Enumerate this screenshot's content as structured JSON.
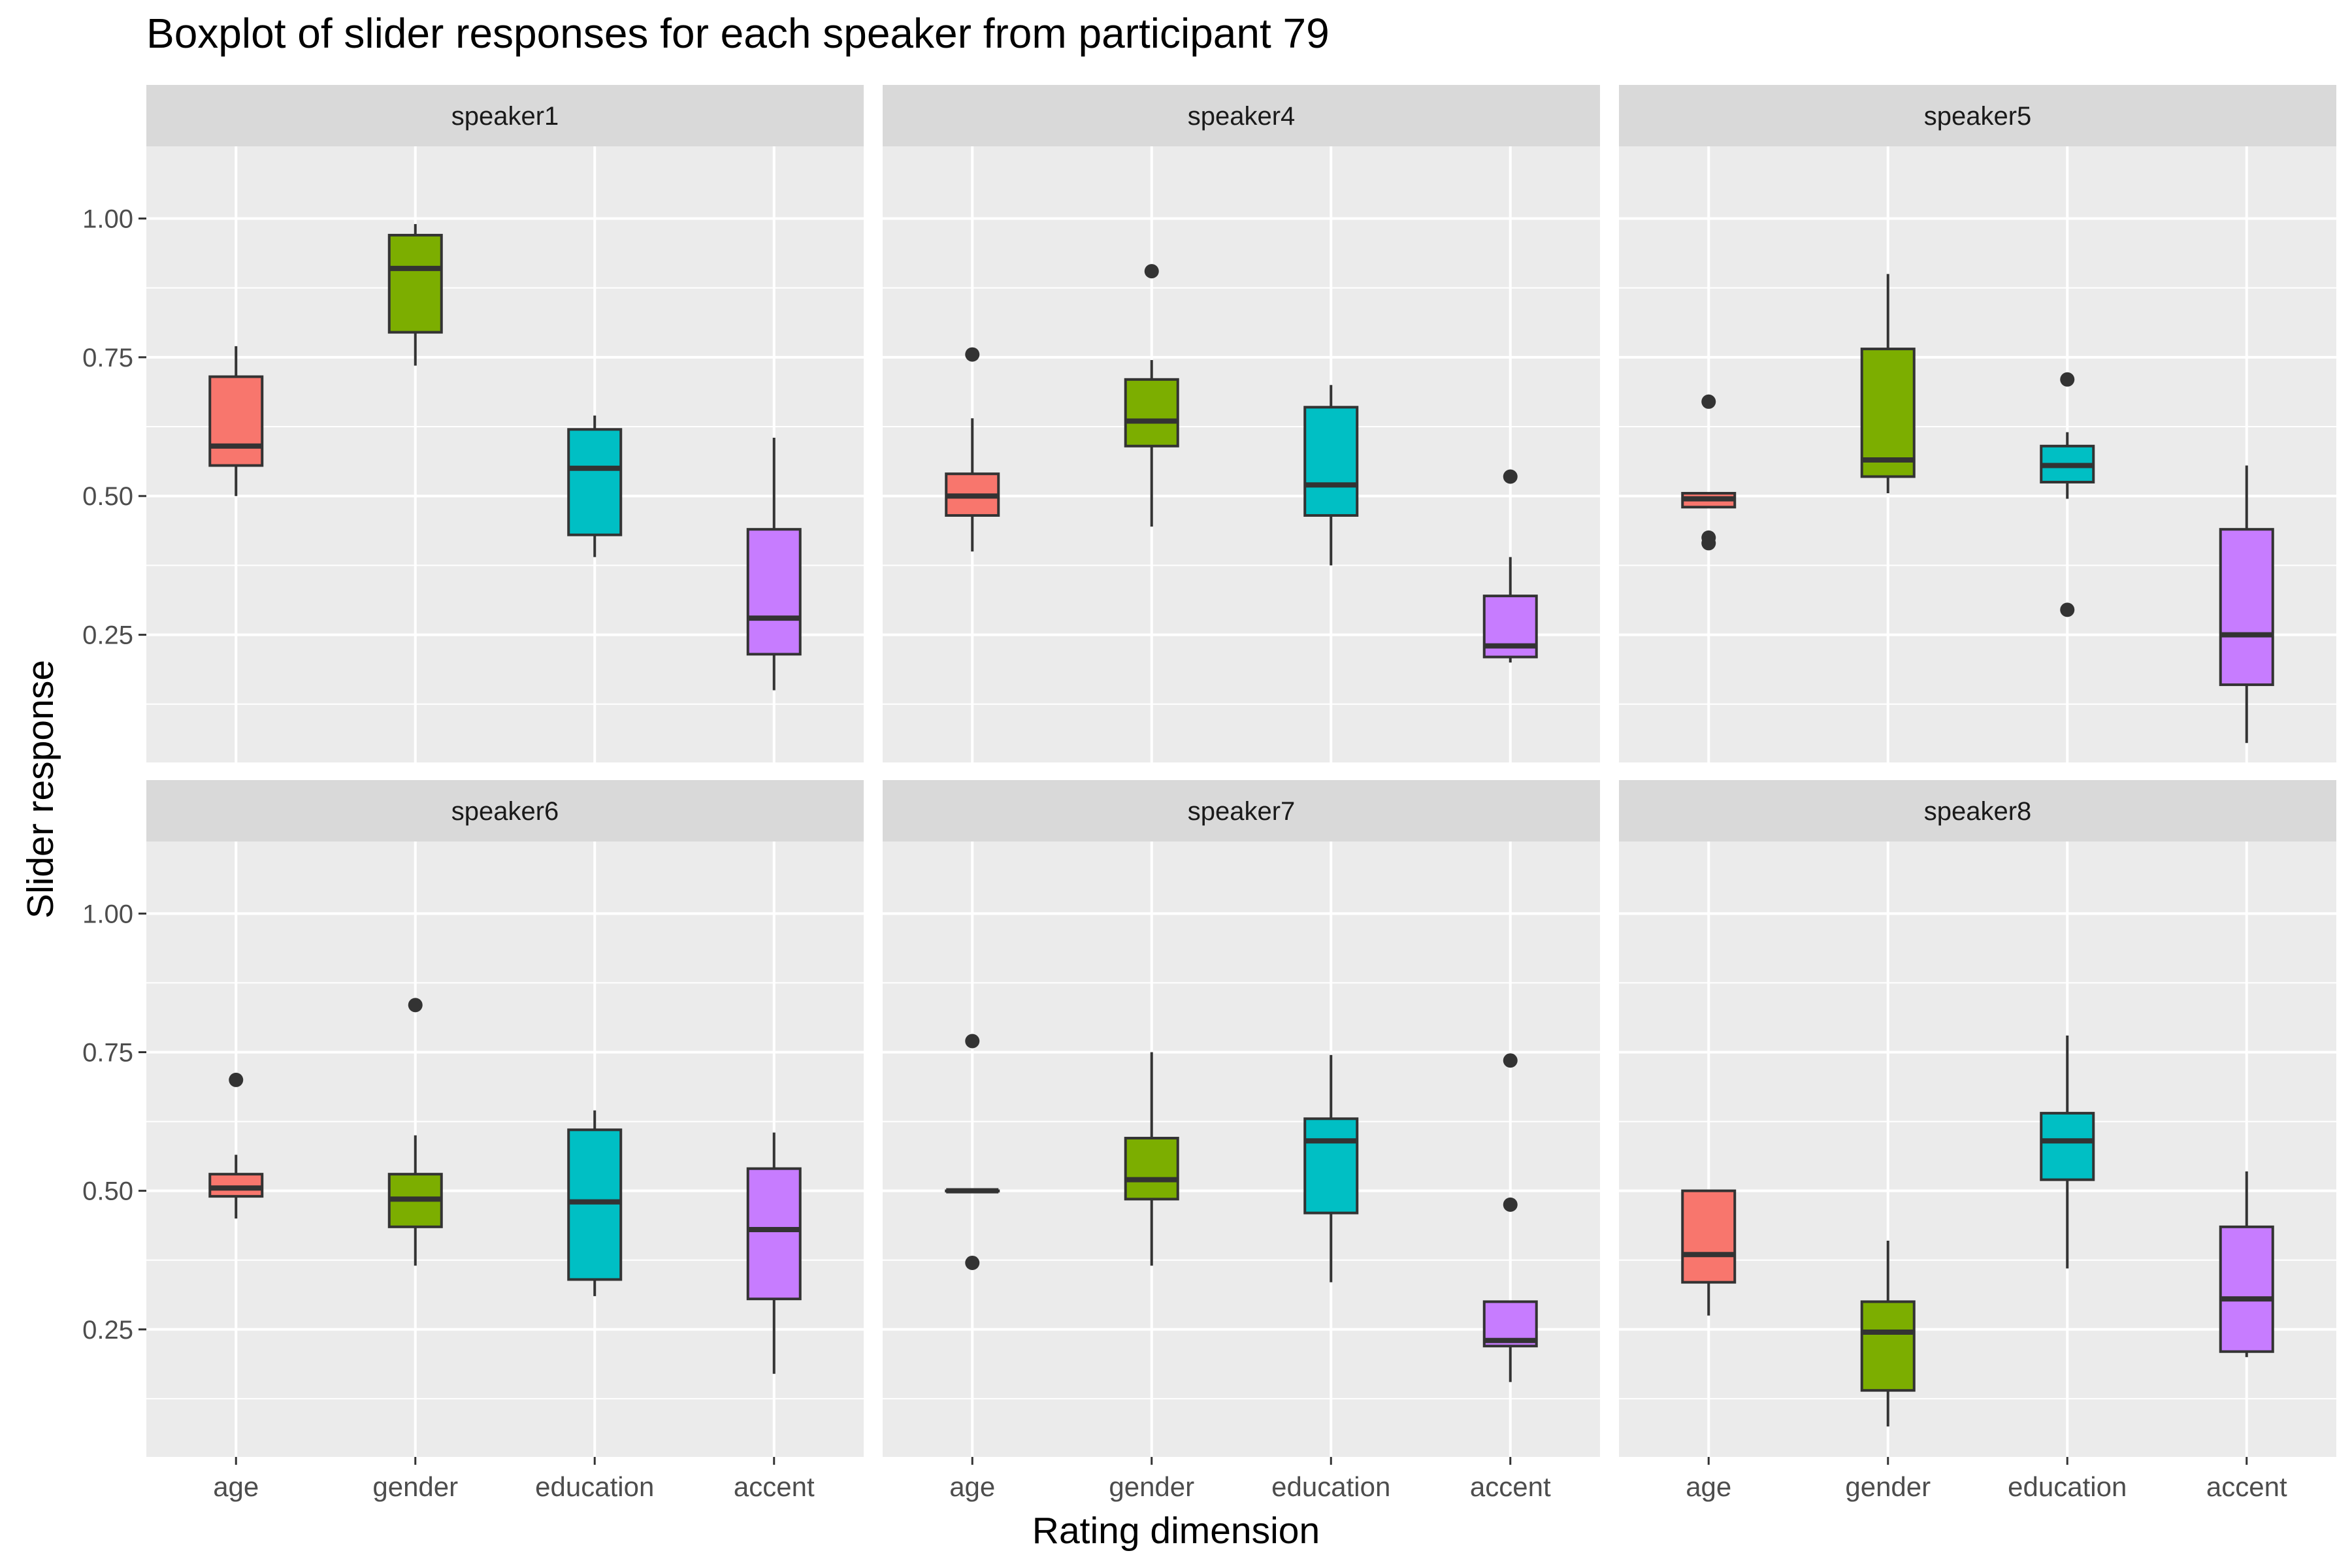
{
  "chart_data": {
    "type": "boxplot",
    "title": "Boxplot of slider responses for each speaker from participant 79",
    "xlabel": "Rating dimension",
    "ylabel": "Slider response",
    "categories": [
      "age",
      "gender",
      "education",
      "accent"
    ],
    "ylim": [
      0.02,
      1.13
    ],
    "y_ticks": [
      0.25,
      0.5,
      0.75,
      1.0
    ],
    "y_tick_labels": [
      "0.25",
      "0.50",
      "0.75",
      "1.00"
    ],
    "colors": {
      "age": "#F8766D",
      "gender": "#7CAE00",
      "education": "#00BFC4",
      "accent": "#C77CFF"
    },
    "grid": true,
    "legend": "none",
    "facets": [
      {
        "label": "speaker1",
        "boxes": [
          {
            "category": "age",
            "min": 0.5,
            "q1": 0.555,
            "median": 0.59,
            "q3": 0.715,
            "max": 0.77,
            "outliers": []
          },
          {
            "category": "gender",
            "min": 0.735,
            "q1": 0.795,
            "median": 0.91,
            "q3": 0.97,
            "max": 0.99,
            "outliers": []
          },
          {
            "category": "education",
            "min": 0.39,
            "q1": 0.43,
            "median": 0.55,
            "q3": 0.62,
            "max": 0.645,
            "outliers": []
          },
          {
            "category": "accent",
            "min": 0.15,
            "q1": 0.215,
            "median": 0.28,
            "q3": 0.44,
            "max": 0.605,
            "outliers": []
          }
        ]
      },
      {
        "label": "speaker4",
        "boxes": [
          {
            "category": "age",
            "min": 0.4,
            "q1": 0.465,
            "median": 0.5,
            "q3": 0.54,
            "max": 0.64,
            "outliers": [
              0.755
            ]
          },
          {
            "category": "gender",
            "min": 0.445,
            "q1": 0.59,
            "median": 0.635,
            "q3": 0.71,
            "max": 0.745,
            "outliers": [
              0.905
            ]
          },
          {
            "category": "education",
            "min": 0.375,
            "q1": 0.465,
            "median": 0.52,
            "q3": 0.66,
            "max": 0.7,
            "outliers": []
          },
          {
            "category": "accent",
            "min": 0.2,
            "q1": 0.21,
            "median": 0.23,
            "q3": 0.32,
            "max": 0.39,
            "outliers": [
              0.535
            ]
          }
        ]
      },
      {
        "label": "speaker5",
        "boxes": [
          {
            "category": "age",
            "min": 0.48,
            "q1": 0.48,
            "median": 0.495,
            "q3": 0.505,
            "max": 0.505,
            "outliers": [
              0.67,
              0.425,
              0.415
            ]
          },
          {
            "category": "gender",
            "min": 0.505,
            "q1": 0.535,
            "median": 0.565,
            "q3": 0.765,
            "max": 0.9,
            "outliers": []
          },
          {
            "category": "education",
            "min": 0.495,
            "q1": 0.525,
            "median": 0.555,
            "q3": 0.59,
            "max": 0.615,
            "outliers": [
              0.71,
              0.295
            ]
          },
          {
            "category": "accent",
            "min": 0.055,
            "q1": 0.16,
            "median": 0.25,
            "q3": 0.44,
            "max": 0.555,
            "outliers": []
          }
        ]
      },
      {
        "label": "speaker6",
        "boxes": [
          {
            "category": "age",
            "min": 0.45,
            "q1": 0.49,
            "median": 0.505,
            "q3": 0.53,
            "max": 0.565,
            "outliers": [
              0.7
            ]
          },
          {
            "category": "gender",
            "min": 0.365,
            "q1": 0.435,
            "median": 0.485,
            "q3": 0.53,
            "max": 0.6,
            "outliers": [
              0.835
            ]
          },
          {
            "category": "education",
            "min": 0.31,
            "q1": 0.34,
            "median": 0.48,
            "q3": 0.61,
            "max": 0.645,
            "outliers": []
          },
          {
            "category": "accent",
            "min": 0.17,
            "q1": 0.305,
            "median": 0.43,
            "q3": 0.54,
            "max": 0.605,
            "outliers": []
          }
        ]
      },
      {
        "label": "speaker7",
        "boxes": [
          {
            "category": "age",
            "min": 0.5,
            "q1": 0.5,
            "median": 0.5,
            "q3": 0.5,
            "max": 0.5,
            "outliers": [
              0.77,
              0.37
            ]
          },
          {
            "category": "gender",
            "min": 0.365,
            "q1": 0.485,
            "median": 0.52,
            "q3": 0.595,
            "max": 0.75,
            "outliers": []
          },
          {
            "category": "education",
            "min": 0.335,
            "q1": 0.46,
            "median": 0.59,
            "q3": 0.63,
            "max": 0.745,
            "outliers": []
          },
          {
            "category": "accent",
            "min": 0.155,
            "q1": 0.22,
            "median": 0.23,
            "q3": 0.3,
            "max": 0.3,
            "outliers": [
              0.735,
              0.475
            ]
          }
        ]
      },
      {
        "label": "speaker8",
        "boxes": [
          {
            "category": "age",
            "min": 0.275,
            "q1": 0.335,
            "median": 0.385,
            "q3": 0.5,
            "max": 0.5,
            "outliers": []
          },
          {
            "category": "gender",
            "min": 0.075,
            "q1": 0.14,
            "median": 0.245,
            "q3": 0.3,
            "max": 0.41,
            "outliers": []
          },
          {
            "category": "education",
            "min": 0.36,
            "q1": 0.52,
            "median": 0.59,
            "q3": 0.64,
            "max": 0.78,
            "outliers": []
          },
          {
            "category": "accent",
            "min": 0.2,
            "q1": 0.21,
            "median": 0.305,
            "q3": 0.435,
            "max": 0.535,
            "outliers": []
          }
        ]
      }
    ]
  }
}
